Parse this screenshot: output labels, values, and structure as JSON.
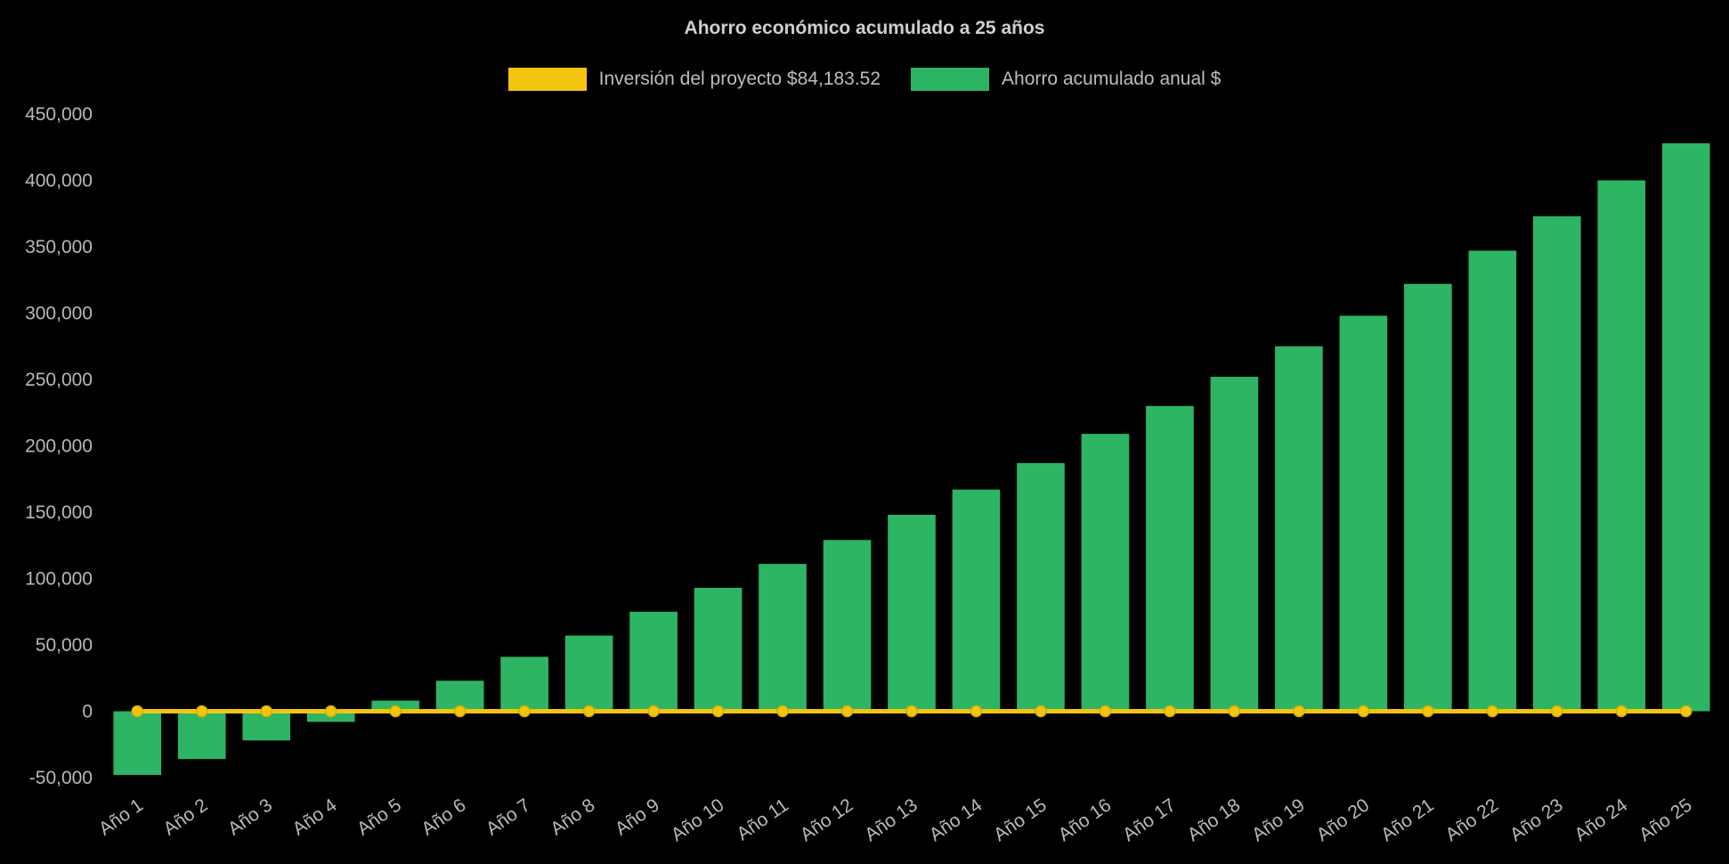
{
  "colors": {
    "background": "#000000",
    "bar_green": "#2db563",
    "line_yellow": "#f2c511",
    "text": "#bdbdbd",
    "title_text": "#cfcfcf"
  },
  "legend": {
    "items": [
      {
        "label": "Inversión del proyecto $84,183.52",
        "color": "#f2c511"
      },
      {
        "label": "Ahorro acumulado anual $",
        "color": "#2db563"
      }
    ]
  },
  "chart_data": {
    "type": "bar",
    "title": "Ahorro económico acumulado a 25 años",
    "xlabel": "",
    "ylabel": "",
    "ylim": [
      -50000,
      450000
    ],
    "ytick_step": 50000,
    "grid": false,
    "legend_position": "top",
    "categories": [
      "Año 1",
      "Año 2",
      "Año 3",
      "Año 4",
      "Año 5",
      "Año 6",
      "Año 7",
      "Año 8",
      "Año 9",
      "Año 10",
      "Año 11",
      "Año 12",
      "Año 13",
      "Año 14",
      "Año 15",
      "Año 16",
      "Año 17",
      "Año 18",
      "Año 19",
      "Año 20",
      "Año 21",
      "Año 22",
      "Año 23",
      "Año 24",
      "Año 25"
    ],
    "series": [
      {
        "name": "Inversión del proyecto $84,183.52",
        "type": "line",
        "color": "#f2c511",
        "values": [
          0,
          0,
          0,
          0,
          0,
          0,
          0,
          0,
          0,
          0,
          0,
          0,
          0,
          0,
          0,
          0,
          0,
          0,
          0,
          0,
          0,
          0,
          0,
          0,
          0
        ]
      },
      {
        "name": "Ahorro acumulado anual $",
        "type": "bar",
        "color": "#2db563",
        "values": [
          -48000,
          -36000,
          -22000,
          -8000,
          8000,
          23000,
          41000,
          57000,
          75000,
          93000,
          111000,
          129000,
          148000,
          167000,
          187000,
          209000,
          230000,
          252000,
          275000,
          298000,
          322000,
          347000,
          373000,
          400000,
          428000
        ]
      }
    ]
  }
}
